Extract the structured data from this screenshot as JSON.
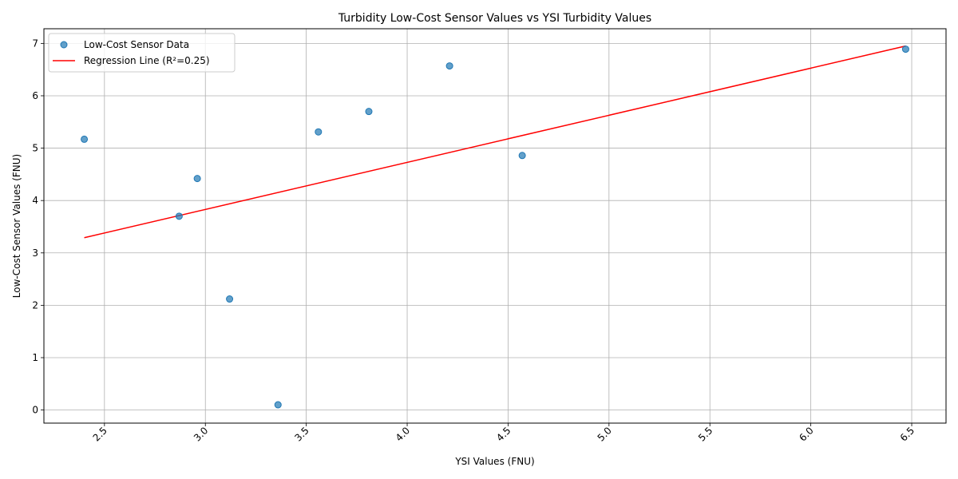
{
  "chart_data": {
    "type": "scatter",
    "title": "Turbidity Low-Cost Sensor Values vs YSI Turbidity Values",
    "xlabel": "YSI Values (FNU)",
    "ylabel": "Low-Cost Sensor Values (FNU)",
    "xlim": [
      2.2,
      6.67
    ],
    "ylim": [
      -0.25,
      7.28
    ],
    "xticks": [
      2.5,
      3.0,
      3.5,
      4.0,
      4.5,
      5.0,
      5.5,
      6.0,
      6.5
    ],
    "xtick_labels": [
      "2.5",
      "3.0",
      "3.5",
      "4.0",
      "4.5",
      "5.0",
      "5.5",
      "6.0",
      "6.5"
    ],
    "yticks": [
      0,
      1,
      2,
      3,
      4,
      5,
      6,
      7
    ],
    "ytick_labels": [
      "0",
      "1",
      "2",
      "3",
      "4",
      "5",
      "6",
      "7"
    ],
    "grid": true,
    "legend_position": "top-left",
    "series": [
      {
        "name": "Low-Cost Sensor Data",
        "kind": "scatter",
        "color": "#1f77b4",
        "x": [
          2.4,
          2.87,
          2.96,
          3.12,
          3.36,
          3.56,
          3.81,
          4.21,
          4.57,
          6.47
        ],
        "y": [
          5.17,
          3.7,
          4.42,
          2.12,
          0.1,
          5.31,
          5.7,
          6.57,
          4.86,
          6.89
        ]
      },
      {
        "name": "Regression Line (R²=0.25)",
        "kind": "line",
        "color": "#ff0000",
        "x": [
          2.4,
          6.47
        ],
        "y": [
          3.29,
          6.95
        ]
      }
    ]
  }
}
